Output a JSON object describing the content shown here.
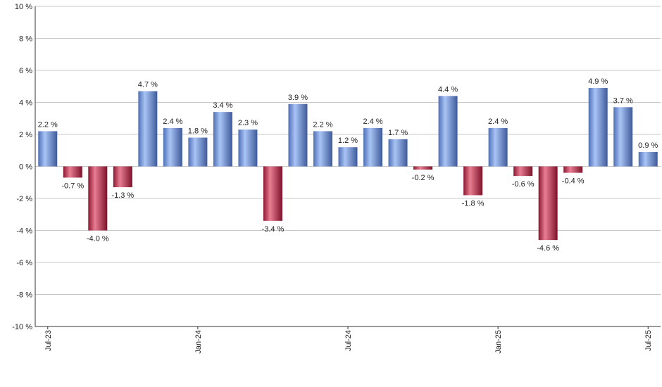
{
  "chart_data": {
    "type": "bar",
    "title": "",
    "xlabel": "",
    "ylabel": "",
    "ylim": [
      -10,
      10
    ],
    "yticks": [
      "10 %",
      "8 %",
      "6 %",
      "4 %",
      "2 %",
      "0 %",
      "-2 %",
      "-4 %",
      "-6 %",
      "-8 %",
      "-10 %"
    ],
    "ytick_values": [
      10,
      8,
      6,
      4,
      2,
      0,
      -2,
      -4,
      -6,
      -8,
      -10
    ],
    "grid": true,
    "legend": "none",
    "categories": [
      "Jul-23",
      "Aug-23",
      "Sep-23",
      "Oct-23",
      "Nov-23",
      "Dec-23",
      "Jan-24",
      "Feb-24",
      "Mar-24",
      "Apr-24",
      "May-24",
      "Jun-24",
      "Jul-24",
      "Aug-24",
      "Sep-24",
      "Oct-24",
      "Nov-24",
      "Dec-24",
      "Jan-25",
      "Feb-25",
      "Mar-25",
      "Apr-25",
      "May-25",
      "Jun-25",
      "Jul-25"
    ],
    "xtick_labels": [
      {
        "index": 0,
        "label": "Jul-23"
      },
      {
        "index": 6,
        "label": "Jan-24"
      },
      {
        "index": 12,
        "label": "Jul-24"
      },
      {
        "index": 18,
        "label": "Jan-25"
      },
      {
        "index": 24,
        "label": "Jul-25"
      }
    ],
    "values": [
      2.2,
      -0.7,
      -4.0,
      -1.3,
      4.7,
      2.4,
      1.8,
      3.4,
      2.3,
      -3.4,
      3.9,
      2.2,
      1.2,
      2.4,
      1.7,
      -0.2,
      4.4,
      -1.8,
      2.4,
      -0.6,
      -4.6,
      -0.4,
      4.9,
      3.7,
      0.9
    ],
    "data_labels": [
      "2.2 %",
      "-0.7 %",
      "-4.0 %",
      "-1.3 %",
      "4.7 %",
      "2.4 %",
      "1.8 %",
      "3.4 %",
      "2.3 %",
      "-3.4 %",
      "3.9 %",
      "2.2 %",
      "1.2 %",
      "2.4 %",
      "1.7 %",
      "-0.2 %",
      "4.4 %",
      "-1.8 %",
      "2.4 %",
      "-0.6 %",
      "-4.6 %",
      "-0.4 %",
      "4.9 %",
      "3.7 %",
      "0.9 %"
    ],
    "colors": {
      "positive": "#7a9ee6",
      "negative": "#c0304f",
      "grid": "#c8c8c8",
      "axis": "#333333"
    }
  }
}
